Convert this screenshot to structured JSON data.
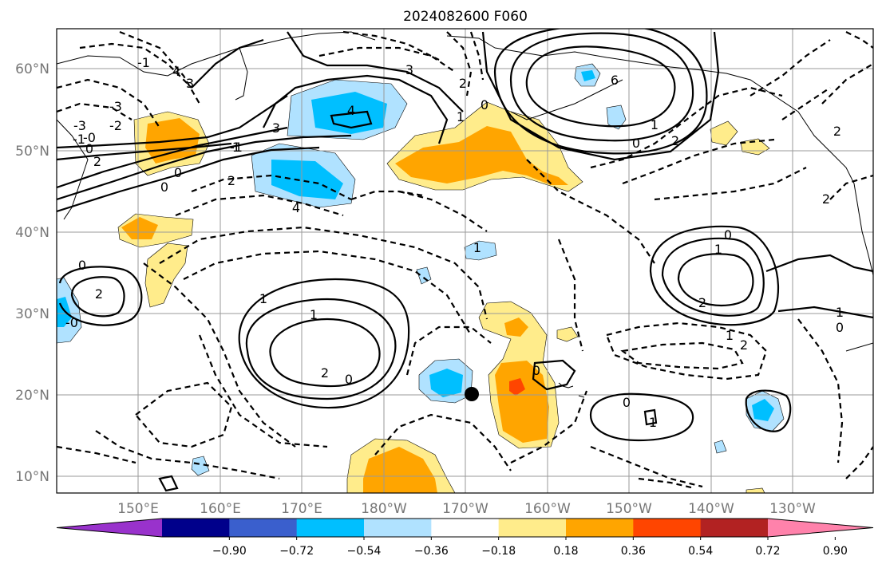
{
  "title": "2024082600 F060",
  "lat_labels": [
    "60°N",
    "50°N",
    "40°N",
    "30°N",
    "20°N",
    "10°N"
  ],
  "lon_labels": [
    "150°E",
    "160°E",
    "170°E",
    "180°W",
    "170°W",
    "160°W",
    "150°W",
    "140°W",
    "130°W"
  ],
  "colorbar": {
    "ticks": [
      "−0.90",
      "−0.72",
      "−0.54",
      "−0.36",
      "−0.18",
      "0.18",
      "0.36",
      "0.54",
      "0.72",
      "0.90"
    ],
    "colors": [
      "#9932cc",
      "#00008b",
      "#3a5fcd",
      "#00bfff",
      "#b0e2ff",
      "#ffffff",
      "#ffec8b",
      "#ffa500",
      "#ff4500",
      "#b22222",
      "#ff82ab"
    ]
  },
  "contour_labels": {
    "c1": "-3",
    "c2": "-1",
    "c3": "-2",
    "c4": "-3",
    "c5": "-1",
    "c6": "-0",
    "c7": "4",
    "c8": "3",
    "c9": "3",
    "c10": "4",
    "c11": "0",
    "c12": "2",
    "c13": "0",
    "c14": "-1",
    "c15": "0",
    "c16": "4",
    "c17": "6",
    "c18": "3",
    "c19": "2",
    "c20": "1",
    "c21": "2",
    "c22": "0",
    "c23": "2",
    "c24": "1",
    "c25": "2",
    "c26": "0",
    "c27": "1",
    "c28": "2",
    "c29": "1",
    "c30": "1",
    "c31": "0",
    "c32": "2",
    "c33": "0",
    "c34": "1",
    "c35": "2",
    "c36": "0",
    "c37": "0",
    "c38": "1",
    "c39": "-0",
    "c40": "1",
    "c41": "2",
    "c42": "0",
    "c43": "1",
    "c44": "1",
    "c45": "2",
    "c46": "0"
  },
  "colors": {
    "gridline": "#9a9a9a",
    "axis_label": "#777777"
  }
}
